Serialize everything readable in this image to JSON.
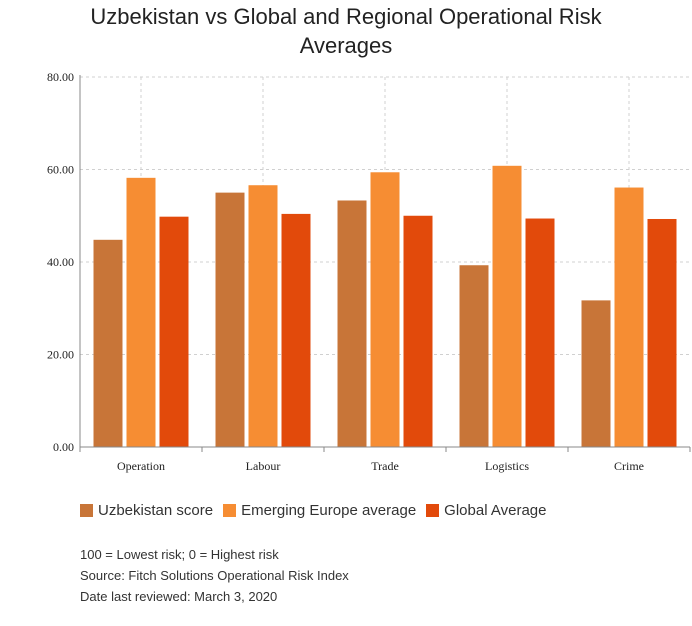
{
  "title_lines": [
    "Uzbekistan vs Global and Regional Operational Risk",
    "Averages"
  ],
  "colors": {
    "uzbekistan": "#c87538",
    "emerging_europe": "#f68d33",
    "global": "#e24a0b",
    "grid": "#d0d0d0",
    "axis": "#888888"
  },
  "chart_data": {
    "type": "bar",
    "title": "Uzbekistan vs Global and Regional Operational Risk Averages",
    "categories": [
      "Operation",
      "Labour",
      "Trade",
      "Logistics",
      "Crime"
    ],
    "series": [
      {
        "name": "Uzbekistan score",
        "values": [
          44.8,
          55.0,
          53.3,
          39.3,
          31.7
        ]
      },
      {
        "name": "Emerging Europe average",
        "values": [
          58.2,
          56.6,
          59.4,
          60.8,
          56.1
        ]
      },
      {
        "name": "Global Average",
        "values": [
          49.8,
          50.4,
          50.0,
          49.4,
          49.3
        ]
      }
    ],
    "ylim": [
      0,
      80
    ],
    "yticks": [
      "0.00",
      "20.00",
      "40.00",
      "60.00",
      "80.00"
    ],
    "grid": true,
    "legend": "bottom-left"
  },
  "notes": [
    "100 = Lowest risk; 0 = Highest risk",
    "Source: Fitch Solutions Operational Risk Index",
    "Date last reviewed: March 3, 2020"
  ]
}
